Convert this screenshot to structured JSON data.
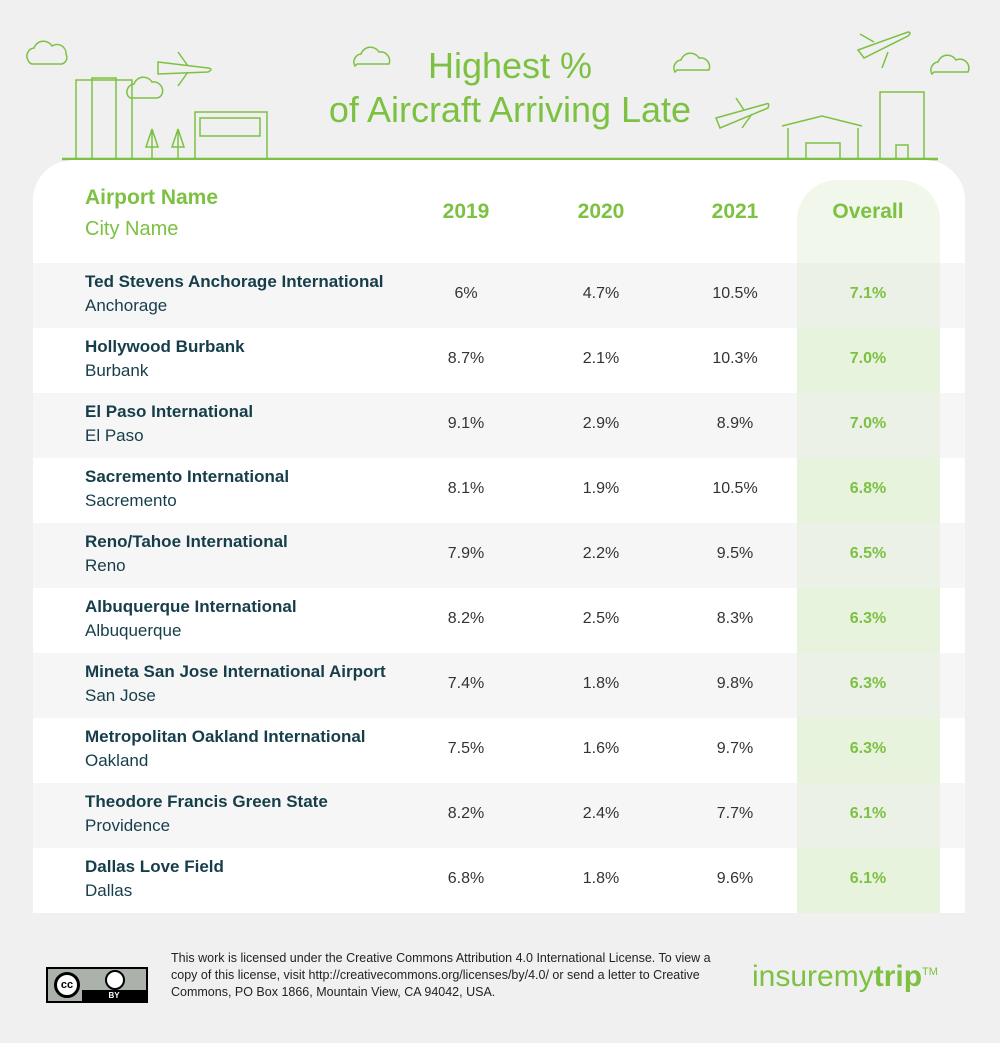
{
  "title": {
    "line1": "Highest %",
    "line2": "of Aircraft Arriving Late"
  },
  "header": {
    "airport": "Airport Name",
    "city": "City Name",
    "y2019": "2019",
    "y2020": "2020",
    "y2021": "2021",
    "overall": "Overall"
  },
  "rows": [
    {
      "airport": "Ted Stevens Anchorage International",
      "city": "Anchorage",
      "y2019": "6%",
      "y2020": "4.7%",
      "y2021": "10.5%",
      "overall": "7.1%"
    },
    {
      "airport": "Hollywood Burbank",
      "city": "Burbank",
      "y2019": "8.7%",
      "y2020": "2.1%",
      "y2021": "10.3%",
      "overall": "7.0%"
    },
    {
      "airport": "El Paso International",
      "city": "El Paso",
      "y2019": "9.1%",
      "y2020": "2.9%",
      "y2021": "8.9%",
      "overall": "7.0%"
    },
    {
      "airport": "Sacremento International",
      "city": "Sacremento",
      "y2019": "8.1%",
      "y2020": "1.9%",
      "y2021": "10.5%",
      "overall": "6.8%"
    },
    {
      "airport": "Reno/Tahoe International",
      "city": "Reno",
      "y2019": "7.9%",
      "y2020": "2.2%",
      "y2021": "9.5%",
      "overall": "6.5%"
    },
    {
      "airport": "Albuquerque International",
      "city": "Albuquerque",
      "y2019": "8.2%",
      "y2020": "2.5%",
      "y2021": "8.3%",
      "overall": "6.3%"
    },
    {
      "airport": "Mineta San Jose International Airport",
      "city": "San Jose",
      "y2019": "7.4%",
      "y2020": "1.8%",
      "y2021": "9.8%",
      "overall": "6.3%"
    },
    {
      "airport": "Metropolitan Oakland International",
      "city": "Oakland",
      "y2019": "7.5%",
      "y2020": "1.6%",
      "y2021": "9.7%",
      "overall": "6.3%"
    },
    {
      "airport": "Theodore Francis Green State",
      "city": "Providence",
      "y2019": "8.2%",
      "y2020": "2.4%",
      "y2021": "7.7%",
      "overall": "6.1%"
    },
    {
      "airport": "Dallas Love Field",
      "city": "Dallas",
      "y2019": "6.8%",
      "y2020": "1.8%",
      "y2021": "9.6%",
      "overall": "6.1%"
    }
  ],
  "footer": {
    "license": "This work is licensed under the Creative Commons Attribution 4.0 International License. To view a copy of this license, visit http://creativecommons.org/licenses/by/4.0/ or send a letter to Creative Commons, PO Box 1866, Mountain View, CA 94042, USA.",
    "cc_label": "cc",
    "by_label": "BY",
    "logo_a": "insuremy",
    "logo_b": "trip",
    "tm": "TM"
  },
  "colors": {
    "accent": "#7cc142",
    "text": "#163d4a"
  }
}
